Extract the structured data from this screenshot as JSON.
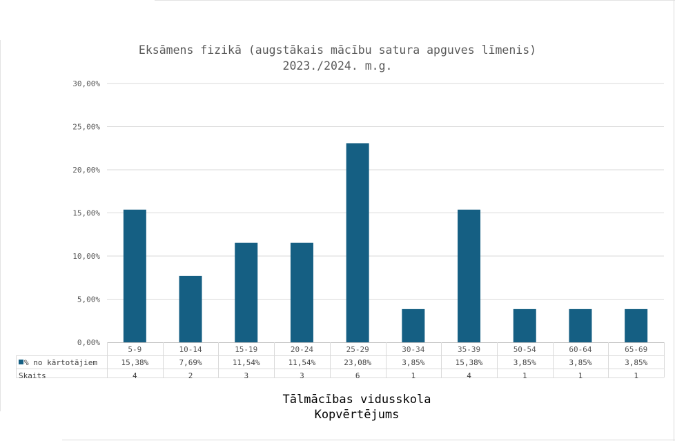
{
  "chart_data": {
    "type": "bar",
    "title": "Eksāmens fizikā (augstākais mācību satura apguves līmenis)",
    "subtitle": "2023./2024. m.g.",
    "categories": [
      "5-9",
      "10-14",
      "15-19",
      "20-24",
      "25-29",
      "30-34",
      "35-39",
      "50-54",
      "60-64",
      "65-69"
    ],
    "series": [
      {
        "name": "% no kārtotājiem",
        "values": [
          15.38,
          7.69,
          11.54,
          11.54,
          23.08,
          3.85,
          15.38,
          3.85,
          3.85,
          3.85
        ],
        "labels": [
          "15,38%",
          "7,69%",
          "11,54%",
          "11,54%",
          "23,08%",
          "3,85%",
          "15,38%",
          "3,85%",
          "3,85%",
          "3,85%"
        ],
        "color": "#155f83"
      }
    ],
    "table_rows": [
      {
        "name": "Skaits",
        "values": [
          "4",
          "2",
          "3",
          "3",
          "6",
          "1",
          "4",
          "1",
          "1",
          "1"
        ]
      }
    ],
    "ylim": [
      0,
      30
    ],
    "yticks": [
      "0,00%",
      "5,00%",
      "10,00%",
      "15,00%",
      "20,00%",
      "25,00%",
      "30,00%"
    ],
    "grid": true,
    "legend": "data table"
  },
  "footer": {
    "line1": "Tālmācības vidusskola",
    "line2": "Kopvērtējums"
  }
}
